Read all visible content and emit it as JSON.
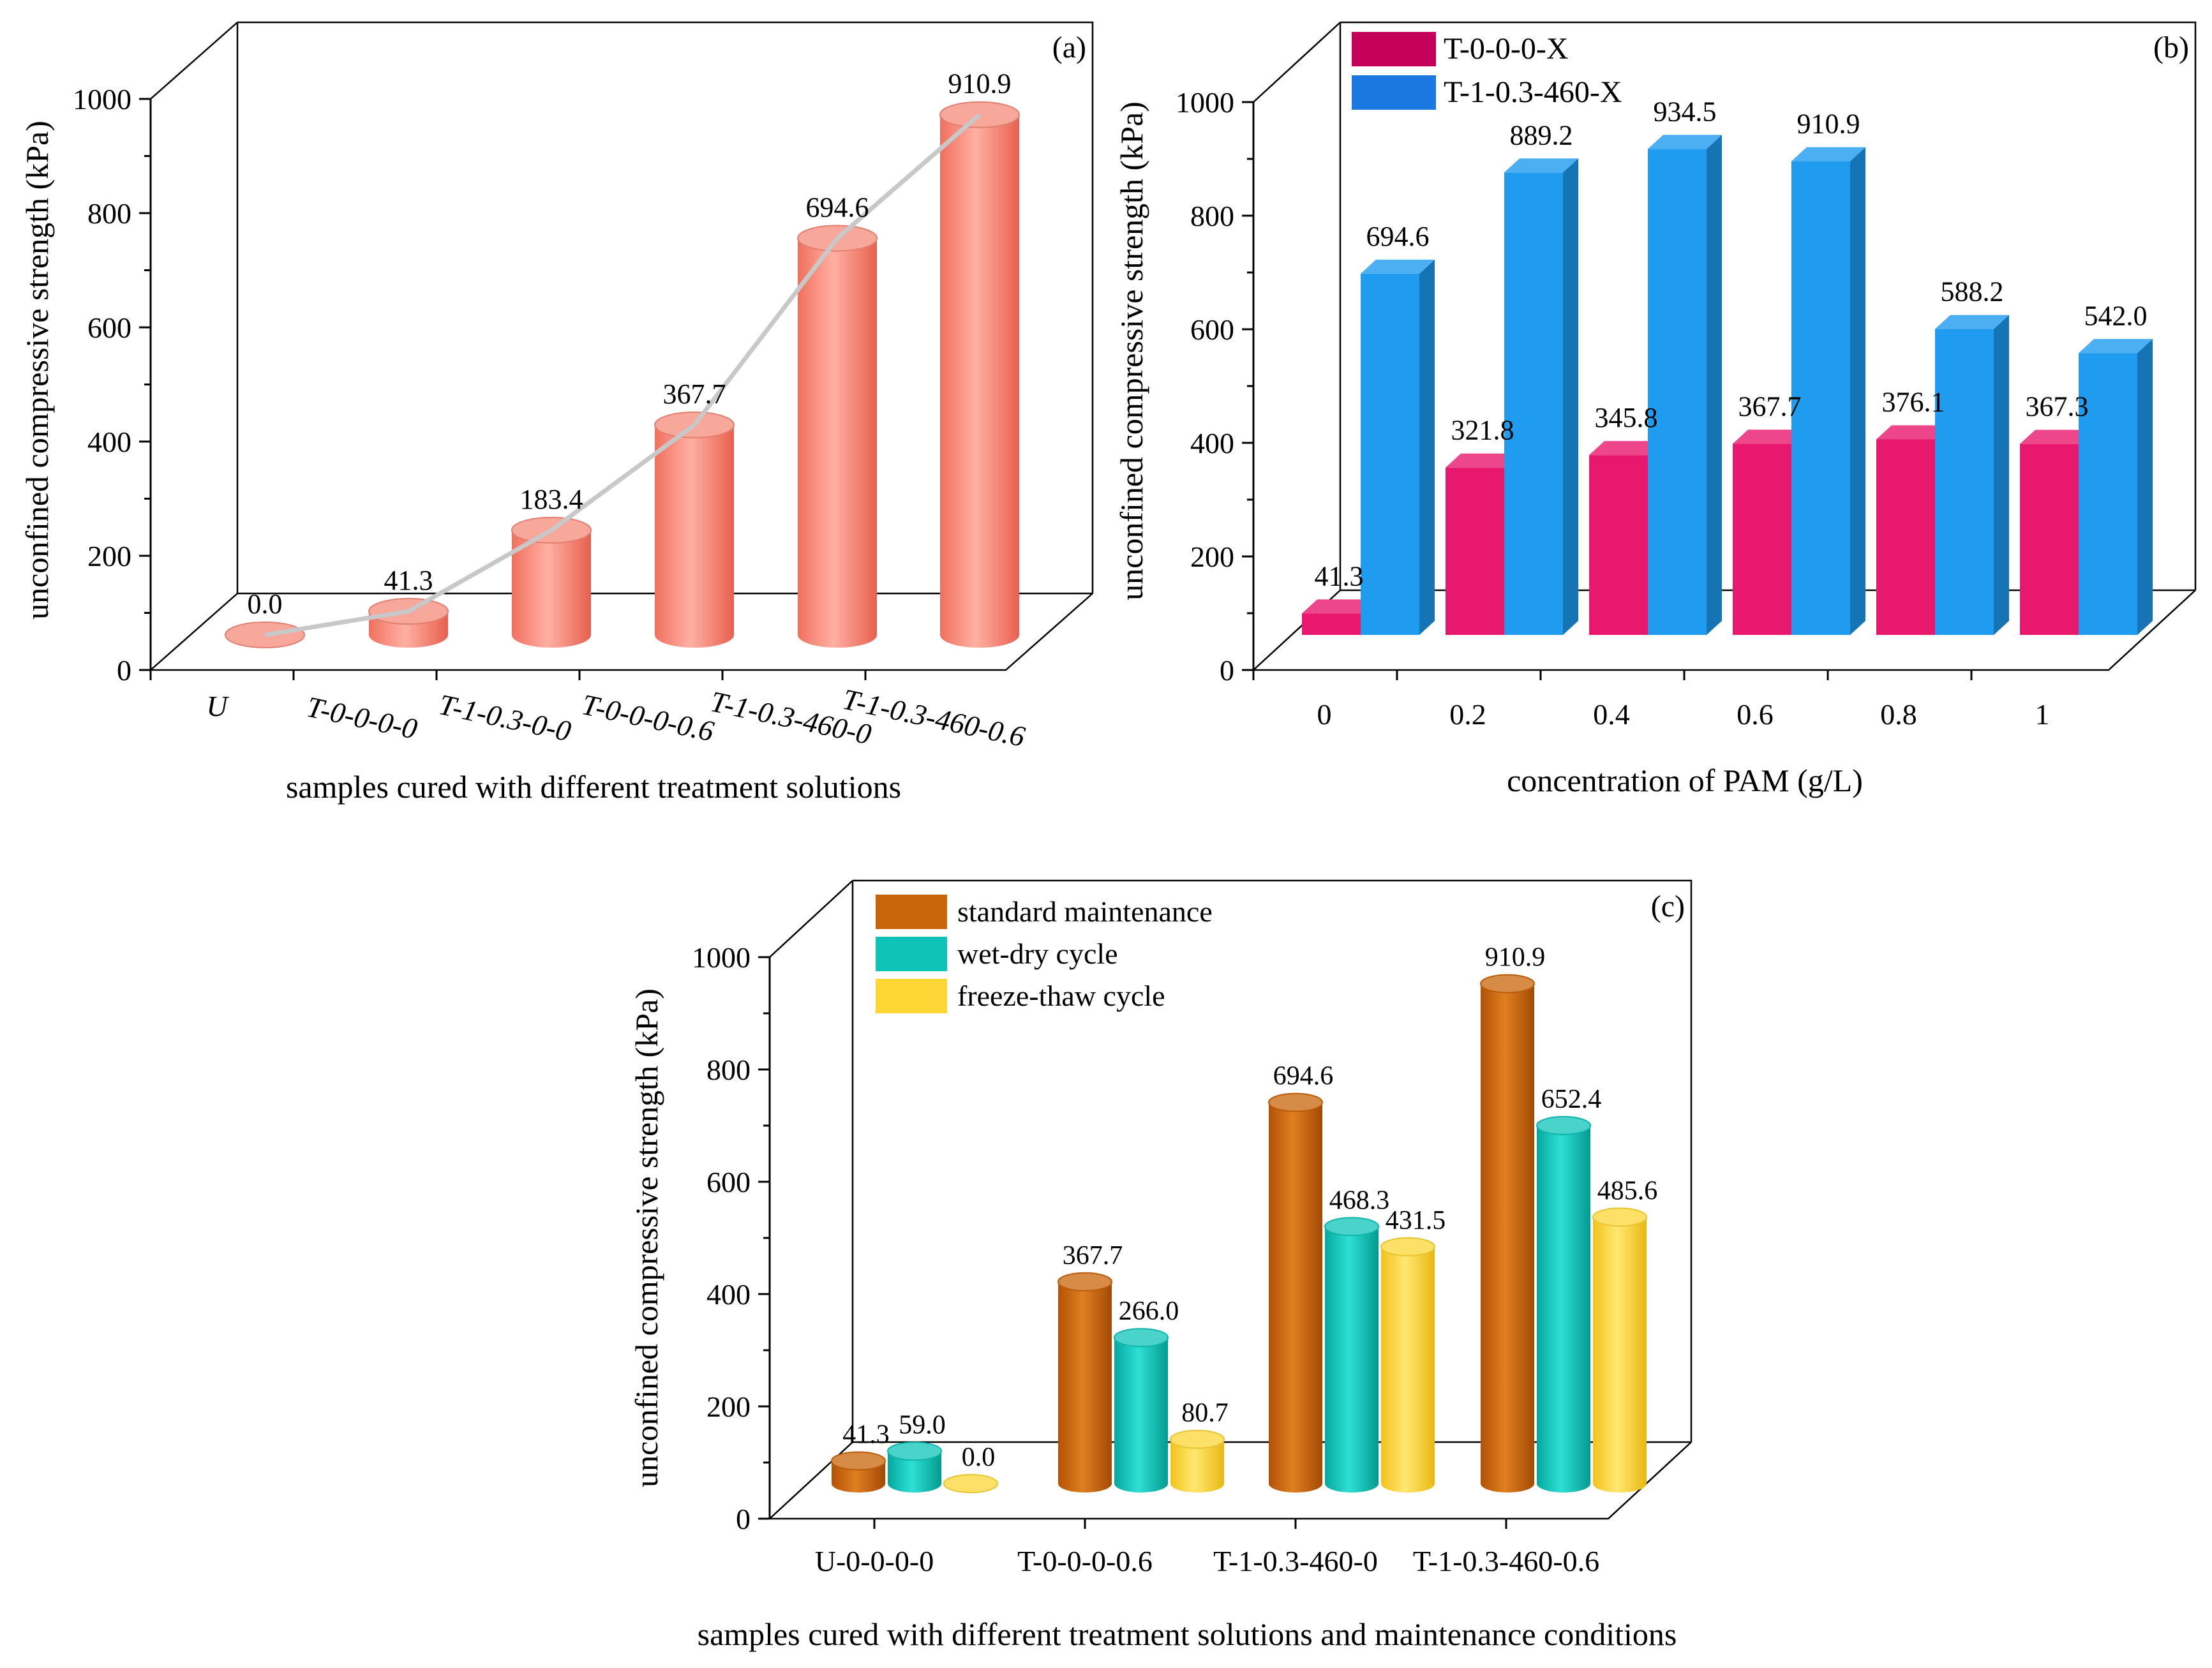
{
  "chart_data": [
    {
      "type": "bar",
      "panel_label": "(a)",
      "categories": [
        "U",
        "T-0-0-0-0",
        "T-1-0.3-0-0",
        "T-0-0-0-0.6",
        "T-1-0.3-460-0",
        "T-1-0.3-460-0.6"
      ],
      "values": [
        0.0,
        41.3,
        183.4,
        367.7,
        694.6,
        910.9
      ],
      "value_labels": [
        "0.0",
        "41.3",
        "183.4",
        "367.7",
        "694.6",
        "910.9"
      ],
      "xlabel": "samples cured with different treatment solutions",
      "ylabel": "unconfined compressive strength (kPa)",
      "ylim": [
        0,
        1000
      ],
      "yticks": [
        "0",
        "200",
        "400",
        "600",
        "800",
        "1000"
      ],
      "color": "#f58a7a",
      "trend_line": true
    },
    {
      "type": "bar",
      "panel_label": "(b)",
      "categories": [
        "0",
        "0.2",
        "0.4",
        "0.6",
        "0.8",
        "1"
      ],
      "series": [
        {
          "name": "T-0-0-0-X",
          "values": [
            41.3,
            321.8,
            345.8,
            367.7,
            376.1,
            367.3
          ],
          "labels": [
            "41.3",
            "321.8",
            "345.8",
            "367.7",
            "376.1",
            "367.3"
          ],
          "color": "#e8186e"
        },
        {
          "name": "T-1-0.3-460-X",
          "values": [
            694.6,
            889.2,
            934.5,
            910.9,
            588.2,
            542.0
          ],
          "labels": [
            "694.6",
            "889.2",
            "934.5",
            "910.9",
            "588.2",
            "542.0"
          ],
          "color": "#1f9bf0"
        }
      ],
      "xlabel": "concentration of PAM (g/L)",
      "ylabel": "unconfined compressive strength (kPa)",
      "ylim": [
        0,
        1000
      ],
      "yticks": [
        "0",
        "200",
        "400",
        "600",
        "800",
        "1000"
      ],
      "legend": "top-left"
    },
    {
      "type": "bar",
      "panel_label": "(c)",
      "categories": [
        "U-0-0-0-0",
        "T-0-0-0-0.6",
        "T-1-0.3-460-0",
        "T-1-0.3-460-0.6"
      ],
      "series": [
        {
          "name": "standard maintenance",
          "values": [
            41.3,
            367.7,
            694.6,
            910.9
          ],
          "labels": [
            "41.3",
            "367.7",
            "694.6",
            "910.9"
          ],
          "color": "#c8640a"
        },
        {
          "name": "wet-dry cycle",
          "values": [
            59.0,
            266.0,
            468.3,
            652.4
          ],
          "labels": [
            "59.0",
            "266.0",
            "468.3",
            "652.4"
          ],
          "color": "#0ec4b8"
        },
        {
          "name": "freeze-thaw cycle",
          "values": [
            0.0,
            80.7,
            431.5,
            485.6
          ],
          "labels": [
            "0.0",
            "80.7",
            "431.5",
            "485.6"
          ],
          "color": "#fcd635"
        }
      ],
      "xlabel": "samples cured with different treatment solutions and maintenance conditions",
      "ylabel": "unconfined compressive strength (kPa)",
      "ylim": [
        0,
        1000
      ],
      "yticks": [
        "0",
        "200",
        "400",
        "600",
        "800",
        "1000"
      ],
      "legend": "top-left"
    }
  ]
}
